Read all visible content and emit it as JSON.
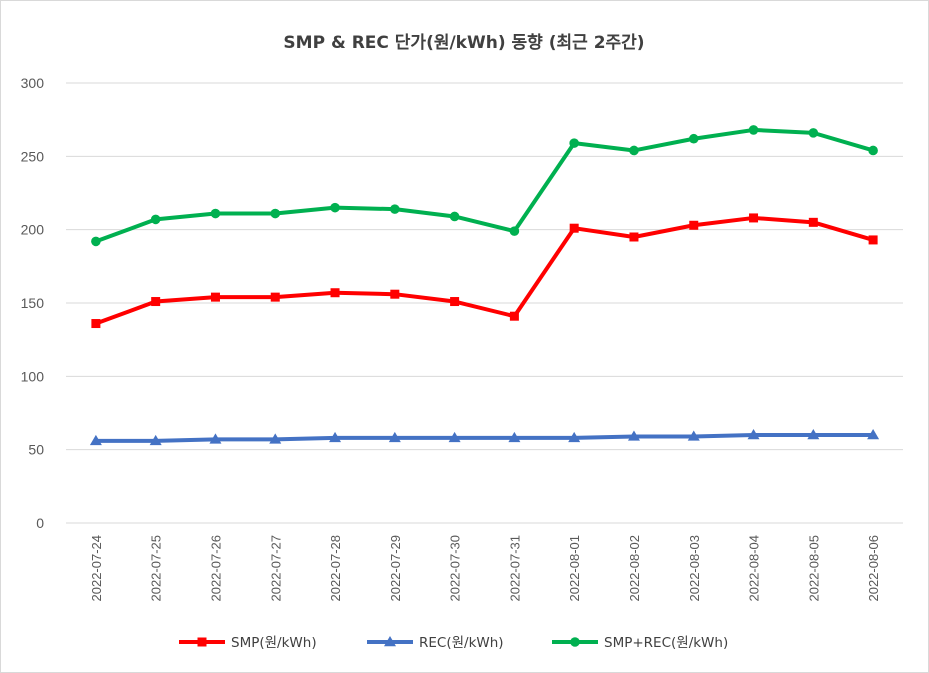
{
  "chart_data": {
    "type": "line",
    "title": "SMP & REC 단가(원/kWh) 동향 (최근 2주간)",
    "xlabel": "",
    "ylabel": "",
    "ylim": [
      0,
      300
    ],
    "yticks": [
      0,
      50,
      100,
      150,
      200,
      250,
      300
    ],
    "grid": true,
    "legend_position": "bottom",
    "categories": [
      "2022-07-24",
      "2022-07-25",
      "2022-07-26",
      "2022-07-27",
      "2022-07-28",
      "2022-07-29",
      "2022-07-30",
      "2022-07-31",
      "2022-08-01",
      "2022-08-02",
      "2022-08-03",
      "2022-08-04",
      "2022-08-05",
      "2022-08-06"
    ],
    "series": [
      {
        "name": "SMP(원/kWh)",
        "color": "#ff0000",
        "marker": "square",
        "values": [
          136,
          151,
          154,
          154,
          157,
          156,
          151,
          141,
          201,
          195,
          203,
          208,
          205,
          193
        ]
      },
      {
        "name": "REC(원/kWh)",
        "color": "#4472c4",
        "marker": "triangle",
        "values": [
          56,
          56,
          57,
          57,
          58,
          58,
          58,
          58,
          58,
          59,
          59,
          60,
          60,
          60
        ]
      },
      {
        "name": "SMP+REC(원/kWh)",
        "color": "#00b050",
        "marker": "circle",
        "values": [
          192,
          207,
          211,
          211,
          215,
          214,
          209,
          199,
          259,
          254,
          262,
          268,
          266,
          254
        ]
      }
    ]
  }
}
